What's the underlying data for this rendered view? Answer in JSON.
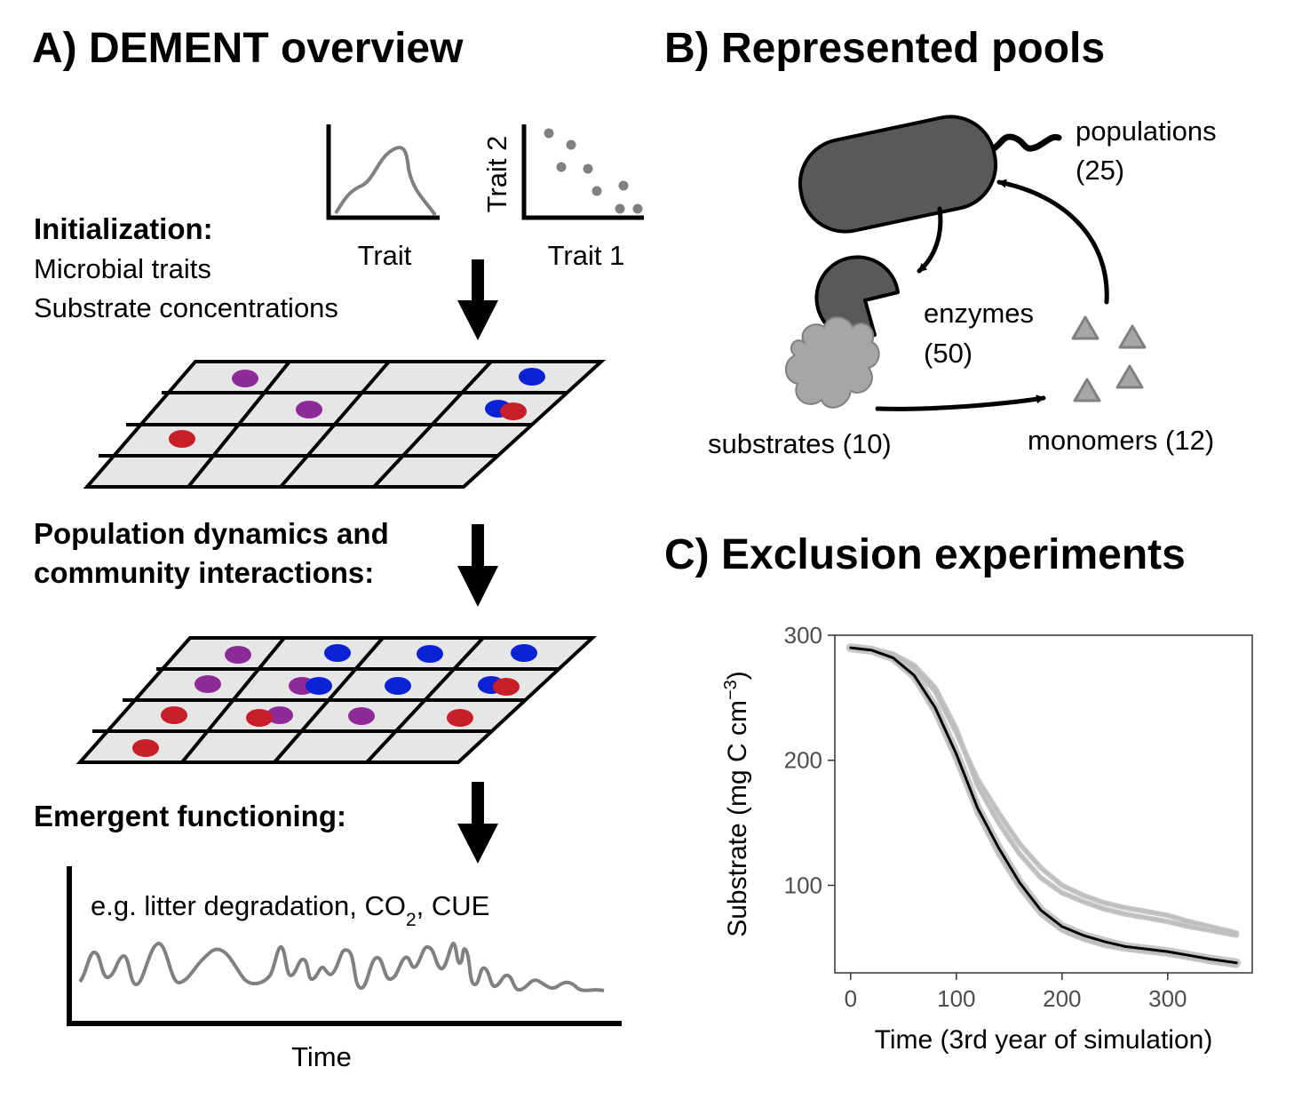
{
  "panel_a": {
    "title": "A) DEMENT overview",
    "trait_plot_xlabel": "Trait",
    "trait2_plot_xlabel": "Trait 1",
    "trait2_plot_ylabel": "Trait 2",
    "init_heading": "Initialization:",
    "init_line1": "Microbial traits",
    "init_line2": "Substrate concentrations",
    "dynamics_heading_line1": "Population dynamics and",
    "dynamics_heading_line2": "community interactions:",
    "emergent_heading": "Emergent functioning:",
    "emergent_note": "e.g. litter degradation, CO",
    "emergent_note_sub": "2",
    "emergent_note_end": ", CUE",
    "time_label": "Time",
    "colors": {
      "purple": "#8e2a97",
      "blue": "#0a22d4",
      "red": "#c81e2a",
      "grid_fill": "#e6e6e6"
    }
  },
  "panel_b": {
    "title": "B) Represented pools",
    "populations_label": "populations",
    "populations_count": "(25)",
    "enzymes_label": "enzymes",
    "enzymes_count": "(50)",
    "substrates_label": "substrates (10)",
    "monomers_label": "monomers (12)"
  },
  "panel_c": {
    "title": "C) Exclusion experiments"
  },
  "chart_data": {
    "type": "line",
    "title": "C) Exclusion experiments",
    "xlabel": "Time (3rd year of simulation)",
    "ylabel": "Substrate (mg C cm",
    "ylabel_sup": "−3",
    "ylabel_close": ")",
    "xlim": [
      -15,
      380
    ],
    "ylim": [
      30,
      300
    ],
    "xticks": [
      0,
      100,
      200,
      300
    ],
    "yticks": [
      100,
      200,
      300
    ],
    "grid": false,
    "series": [
      {
        "color": "#000000",
        "x": [
          0,
          20,
          40,
          60,
          80,
          100,
          120,
          140,
          160,
          180,
          200,
          220,
          240,
          260,
          280,
          300,
          320,
          340,
          365
        ],
        "y": [
          290,
          288,
          282,
          268,
          242,
          205,
          162,
          130,
          102,
          80,
          67,
          60,
          55,
          51,
          49,
          47,
          44,
          41,
          38
        ]
      },
      {
        "color": "#bdbdbd",
        "x": [
          0,
          20,
          40,
          60,
          80,
          100,
          120,
          140,
          160,
          180,
          200,
          220,
          240,
          260,
          280,
          300,
          320,
          340,
          365
        ],
        "y": [
          290,
          289,
          284,
          274,
          255,
          222,
          185,
          158,
          133,
          114,
          100,
          92,
          86,
          82,
          79,
          76,
          71,
          67,
          62
        ]
      },
      {
        "color": "#bdbdbd",
        "x": [
          0,
          20,
          40,
          60,
          80,
          100,
          120,
          140,
          160,
          180,
          200,
          220,
          240,
          260,
          280,
          300,
          320,
          340,
          365
        ],
        "y": [
          290,
          289,
          285,
          276,
          258,
          225,
          180,
          150,
          125,
          106,
          94,
          87,
          81,
          77,
          74,
          71,
          67,
          64,
          60
        ]
      },
      {
        "color": "#bdbdbd",
        "x": [
          0,
          20,
          40,
          60,
          80,
          100,
          120,
          140,
          160,
          180,
          200,
          220,
          240,
          260,
          280,
          300,
          320,
          340,
          365
        ],
        "y": [
          290,
          288,
          281,
          266,
          238,
          200,
          158,
          125,
          98,
          77,
          64,
          57,
          52,
          49,
          47,
          45,
          42,
          39,
          36
        ]
      }
    ]
  }
}
